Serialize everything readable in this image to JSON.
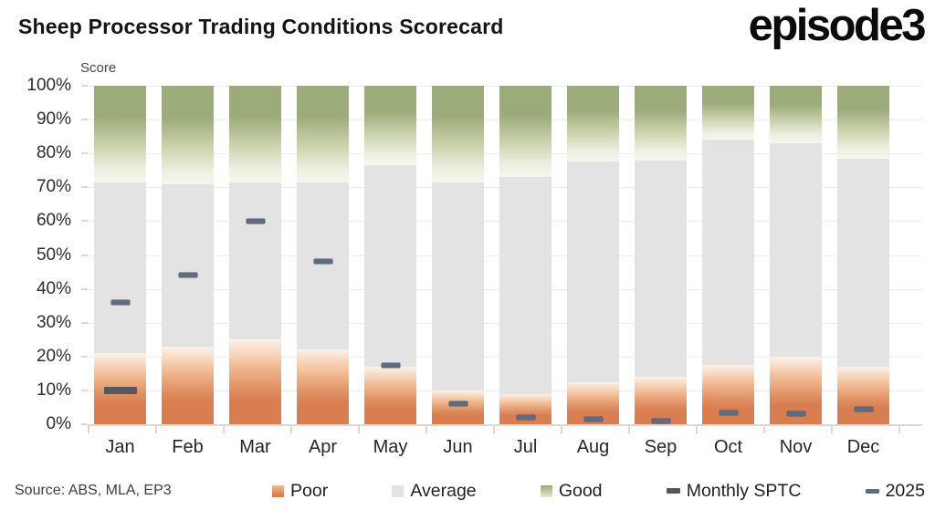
{
  "header": {
    "title": "Sheep Processor Trading Conditions Scorecard",
    "logo": "episode3"
  },
  "axis": {
    "score_label": "Score",
    "y_ticks": [
      "100%",
      "90%",
      "80%",
      "70%",
      "60%",
      "50%",
      "40%",
      "30%",
      "20%",
      "10%",
      "0%"
    ]
  },
  "source": "Source: ABS, MLA, EP3",
  "legend": [
    {
      "label": "Poor",
      "kind": "square",
      "swatch": "poor"
    },
    {
      "label": "Average",
      "kind": "square",
      "swatch": "average"
    },
    {
      "label": "Good",
      "kind": "square",
      "swatch": "good"
    },
    {
      "label": "Monthly SPTC",
      "kind": "dash",
      "swatch": "sptc"
    },
    {
      "label": "2025",
      "kind": "dash",
      "swatch": "y2025"
    }
  ],
  "colors": {
    "poor": "#D87E51",
    "average": "#E3E3E3",
    "good": "#9CAB7A",
    "monthly_sptc": "#57585B",
    "y2025": "#5E6B80",
    "gridline": "#ECECEC",
    "axis_line": "#D9D9D9"
  },
  "chart_data": {
    "type": "bar",
    "stacked": true,
    "title": "Sheep Processor Trading Conditions Scorecard",
    "ylabel": "Score",
    "ylim": [
      0,
      100
    ],
    "y_unit": "%",
    "grid": true,
    "legend_position": "bottom",
    "categories": [
      "Jan",
      "Feb",
      "Mar",
      "Apr",
      "May",
      "Jun",
      "Jul",
      "Aug",
      "Sep",
      "Oct",
      "Nov",
      "Dec"
    ],
    "series": [
      {
        "name": "Poor",
        "values": [
          21,
          23,
          25,
          22,
          17,
          10,
          9,
          12.5,
          14,
          17.5,
          20,
          17
        ]
      },
      {
        "name": "Average",
        "values": [
          50.5,
          48,
          46.5,
          49.5,
          59.5,
          61.5,
          64,
          65,
          64,
          66.5,
          63,
          61.5
        ]
      },
      {
        "name": "Good",
        "values": [
          28.5,
          29,
          28.5,
          28.5,
          23.5,
          28.5,
          27,
          22.5,
          22,
          16,
          17,
          21.5
        ]
      }
    ],
    "markers": [
      {
        "name": "Monthly SPTC",
        "values": [
          10,
          null,
          null,
          null,
          null,
          null,
          null,
          null,
          null,
          null,
          null,
          null
        ]
      },
      {
        "name": "2025",
        "values": [
          36,
          44,
          60,
          48,
          17.5,
          6,
          2,
          1.5,
          1,
          3.5,
          3,
          4.5
        ]
      }
    ]
  }
}
